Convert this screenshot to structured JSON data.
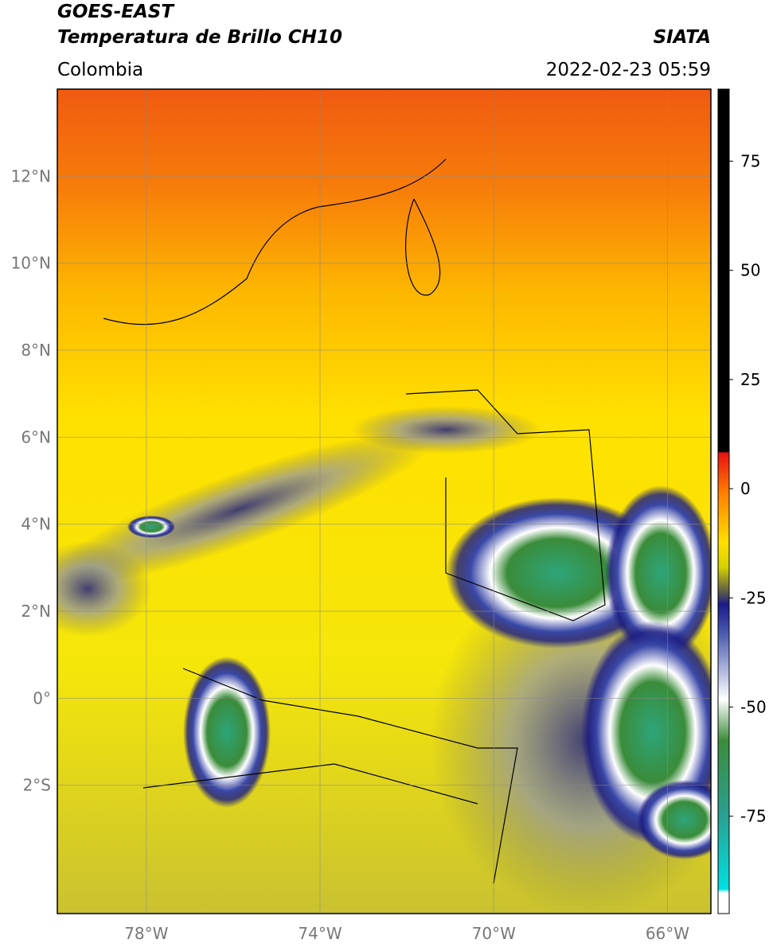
{
  "header": {
    "title": "GOES-EAST",
    "subtitle": "Temperatura de Brillo CH10",
    "region": "Colombia",
    "source": "SIATA",
    "datetime": "2022-02-23 05:59"
  },
  "map": {
    "xlim": [
      -80.05,
      -65.0
    ],
    "ylim": [
      -4.95,
      14.0
    ],
    "xticks": [
      {
        "value": -78,
        "label": "78°W"
      },
      {
        "value": -74,
        "label": "74°W"
      },
      {
        "value": -70,
        "label": "70°W"
      },
      {
        "value": -66,
        "label": "66°W"
      }
    ],
    "yticks": [
      {
        "value": 12,
        "label": "12°N"
      },
      {
        "value": 10,
        "label": "10°N"
      },
      {
        "value": 8,
        "label": "8°N"
      },
      {
        "value": 6,
        "label": "6°N"
      },
      {
        "value": 4,
        "label": "4°N"
      },
      {
        "value": 2,
        "label": "2°N"
      },
      {
        "value": 0,
        "label": "0°"
      },
      {
        "value": -2,
        "label": "2°S"
      }
    ]
  },
  "colorbar": {
    "lim": [
      -97.3,
      91.5
    ],
    "ticks": [
      75,
      50,
      25,
      0,
      -25,
      -50,
      -75
    ]
  }
}
